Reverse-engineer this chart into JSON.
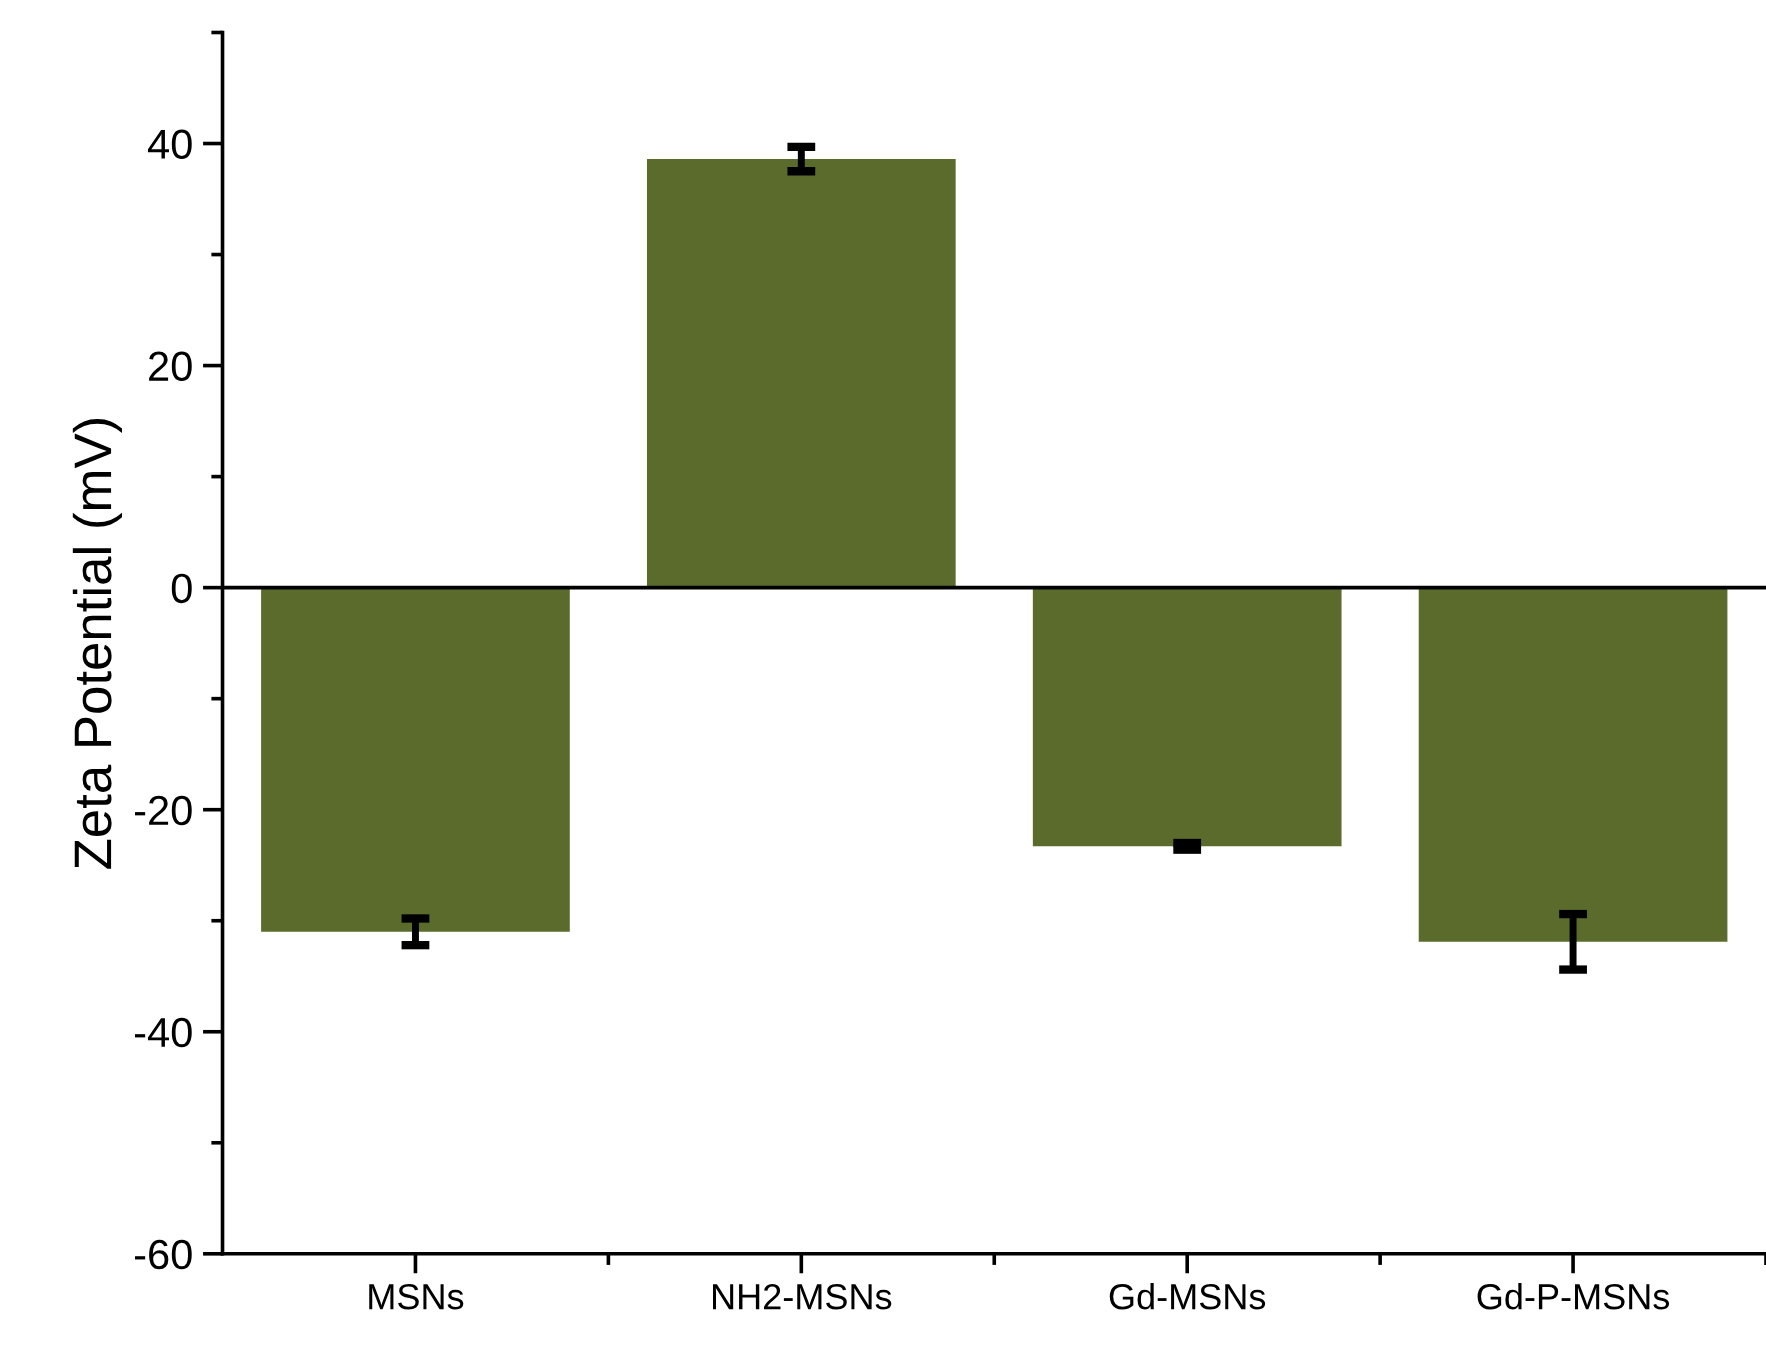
{
  "chart_data": {
    "type": "bar",
    "ylabel": "Zeta Potential (mV)",
    "categories": [
      "MSNs",
      "NH2-MSNs",
      "Gd-MSNs",
      "Gd-P-MSNs"
    ],
    "values": [
      -31.0,
      38.6,
      -23.3,
      -31.9
    ],
    "errors": [
      1.2,
      1.1,
      0.3,
      2.5
    ],
    "color": "#5a6b2c",
    "ylim": [
      -60,
      50
    ],
    "yticks": [
      -60,
      -40,
      -20,
      0,
      20,
      40
    ],
    "ref_lines": [
      {
        "axis": "y",
        "value": 0,
        "label": null,
        "color": "#000000"
      }
    ],
    "grid": false
  }
}
